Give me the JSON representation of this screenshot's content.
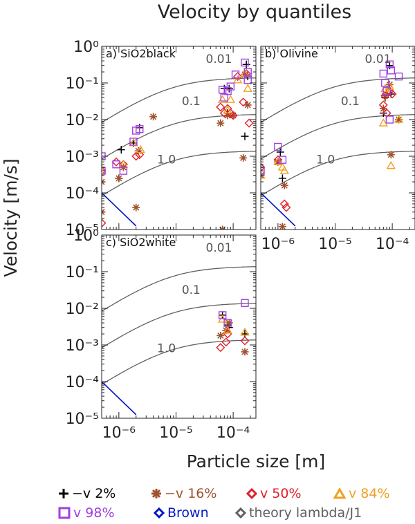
{
  "figure": {
    "title": "Velocity by quantiles",
    "xlabel": "Particle size [m]",
    "ylabel": "Velocity [m/s]",
    "colors": {
      "v2": "#000000",
      "v16": "#a0522d",
      "v50": "#e0202a",
      "v84": "#f0a020",
      "v98": "#a040e0",
      "brown": "#0018c8",
      "theory": "#606060"
    }
  },
  "legend": [
    {
      "key": "v2",
      "label": "−v 2%",
      "symbol": "plus"
    },
    {
      "key": "v16",
      "label": "−v 16%",
      "symbol": "asterisk"
    },
    {
      "key": "v50",
      "label": "v 50%",
      "symbol": "diamond"
    },
    {
      "key": "v84",
      "label": "v 84%",
      "symbol": "triangle"
    },
    {
      "key": "v98",
      "label": "v 98%",
      "symbol": "square"
    },
    {
      "key": "brown",
      "label": "Brown",
      "symbol": "diamond"
    },
    {
      "key": "theory",
      "label": "theory lambda/J1",
      "symbol": "diamond"
    }
  ],
  "chart_data": [
    {
      "type": "scatter",
      "title": "a) SiO2black",
      "xscale": "log",
      "yscale": "log",
      "xlim": [
        5e-07,
        0.00025
      ],
      "ylim": [
        1e-05,
        1
      ],
      "yticks": [
        "10⁰",
        "10⁻¹",
        "10⁻²",
        "10⁻³",
        "10⁻⁴",
        "10⁻⁵"
      ],
      "xticks": [],
      "theory_labels": [
        "0.01",
        "0.1",
        "1.0"
      ],
      "series": [
        {
          "name": "v2",
          "points": [
            [
              5e-07,
              0.0005
            ],
            [
              1.1e-06,
              0.0015
            ],
            [
              1e-06,
              0.00025
            ],
            [
              1.8e-06,
              0.0023
            ],
            [
              2.3e-06,
              0.006
            ],
            [
              7e-05,
              0.07
            ],
            [
              8e-05,
              0.015
            ],
            [
              8.5e-05,
              0.07
            ],
            [
              0.00016,
              0.0035
            ],
            [
              0.00017,
              0.32
            ],
            [
              0.00018,
              0.15
            ]
          ]
        },
        {
          "name": "v16",
          "points": [
            [
              5e-07,
              0.0002
            ],
            [
              5e-07,
              3e-05
            ],
            [
              1e-06,
              0.00025
            ],
            [
              1.2e-06,
              0.0005
            ],
            [
              2e-06,
              4e-05
            ],
            [
              2.2e-06,
              0.0014
            ],
            [
              4e-06,
              0.012
            ],
            [
              6e-05,
              0.008
            ],
            [
              6.5e-05,
              1e-05
            ],
            [
              8e-05,
              0.013
            ],
            [
              0.0001,
              0.013
            ],
            [
              0.00015,
              0.0009
            ],
            [
              0.00016,
              0.17
            ],
            [
              0.00018,
              0.025
            ]
          ]
        },
        {
          "name": "v50",
          "points": [
            [
              5e-07,
              1.5e-05
            ],
            [
              5e-07,
              0.0004
            ],
            [
              9e-07,
              0.0007
            ],
            [
              1.2e-06,
              0.0006
            ],
            [
              2e-06,
              0.001
            ],
            [
              2.3e-06,
              0.0011
            ],
            [
              6e-05,
              0.022
            ],
            [
              7e-05,
              0.015
            ],
            [
              8e-05,
              0.02
            ],
            [
              9e-05,
              0.015
            ],
            [
              0.0001,
              0.013
            ],
            [
              0.00012,
              0.15
            ],
            [
              0.00015,
              0.03
            ],
            [
              0.00017,
              0.18
            ],
            [
              0.00019,
              0.008
            ]
          ]
        },
        {
          "name": "v84",
          "points": [
            [
              5e-07,
              0.0004
            ],
            [
              1.2e-06,
              0.0006
            ],
            [
              1.8e-06,
              0.0023
            ],
            [
              2.4e-06,
              0.0015
            ],
            [
              6.5e-05,
              0.035
            ],
            [
              8e-05,
              0.018
            ],
            [
              9e-05,
              0.035
            ],
            [
              0.00012,
              0.12
            ],
            [
              0.00016,
              0.18
            ],
            [
              0.00018,
              0.07
            ]
          ]
        },
        {
          "name": "v98",
          "points": [
            [
              5e-07,
              0.001
            ],
            [
              5e-07,
              0.0004
            ],
            [
              9e-07,
              0.0006
            ],
            [
              1.2e-06,
              0.0004
            ],
            [
              1.8e-06,
              0.0025
            ],
            [
              2e-06,
              0.005
            ],
            [
              2.3e-06,
              0.0055
            ],
            [
              6.5e-05,
              0.065
            ],
            [
              7e-05,
              0.04
            ],
            [
              8e-05,
              0.06
            ],
            [
              9e-05,
              0.08
            ],
            [
              0.00011,
              0.17
            ],
            [
              0.00016,
              0.36
            ],
            [
              0.00018,
              0.2
            ],
            [
              0.00018,
              0.12
            ]
          ]
        }
      ]
    },
    {
      "type": "scatter",
      "title": "b) Olivine",
      "xscale": "log",
      "yscale": "log",
      "xlim": [
        5e-07,
        0.00025
      ],
      "ylim": [
        1e-05,
        1
      ],
      "yticks": [],
      "xticks": [
        "10⁻⁶",
        "10⁻⁵",
        "10⁻⁴"
      ],
      "theory_labels": [
        "0.01",
        "0.1",
        "1.0"
      ],
      "series": [
        {
          "name": "v2",
          "points": [
            [
              5e-07,
              0.0005
            ],
            [
              1.1e-06,
              0.0013
            ],
            [
              1.2e-06,
              0.00025
            ],
            [
              7e-05,
              0.015
            ],
            [
              7.5e-05,
              0.04
            ],
            [
              9e-05,
              0.3
            ],
            [
              9.5e-05,
              0.05
            ]
          ]
        },
        {
          "name": "v16",
          "points": [
            [
              5e-07,
              0.0003
            ],
            [
              1e-06,
              0.0007
            ],
            [
              1.2e-06,
              1.2e-05
            ],
            [
              1.3e-06,
              0.00016
            ],
            [
              7e-05,
              0.02
            ],
            [
              7.5e-05,
              0.045
            ],
            [
              9e-05,
              0.09
            ],
            [
              9.5e-05,
              0.0011
            ],
            [
              0.00013,
              0.01
            ]
          ]
        },
        {
          "name": "v50",
          "points": [
            [
              5e-07,
              0.0005
            ],
            [
              1e-06,
              0.0008
            ],
            [
              1.3e-06,
              5e-05
            ],
            [
              1.4e-06,
              4e-05
            ],
            [
              7e-05,
              0.025
            ],
            [
              7.5e-05,
              0.045
            ],
            [
              8e-05,
              0.015
            ],
            [
              9e-05,
              0.06
            ],
            [
              0.0001,
              0.05
            ]
          ]
        },
        {
          "name": "v84",
          "points": [
            [
              5e-07,
              0.0003
            ],
            [
              1e-06,
              0.0007
            ],
            [
              1.2e-06,
              0.0005
            ],
            [
              1.3e-06,
              0.0004
            ],
            [
              7e-05,
              0.008
            ],
            [
              7.5e-05,
              0.07
            ],
            [
              9e-05,
              0.08
            ],
            [
              9.5e-05,
              0.00055
            ],
            [
              0.00013,
              0.01
            ]
          ]
        },
        {
          "name": "v98",
          "points": [
            [
              5e-07,
              0.0004
            ],
            [
              1e-06,
              0.0018
            ],
            [
              1.2e-06,
              0.0008
            ],
            [
              7e-05,
              0.18
            ],
            [
              7.5e-05,
              0.1
            ],
            [
              8e-05,
              0.06
            ],
            [
              9e-05,
              0.32
            ],
            [
              9.5e-05,
              0.22
            ],
            [
              9e-05,
              0.01
            ],
            [
              0.00013,
              0.15
            ]
          ]
        }
      ]
    },
    {
      "type": "scatter",
      "title": "c) SiO2white",
      "xscale": "log",
      "yscale": "log",
      "xlim": [
        5e-07,
        0.00025
      ],
      "ylim": [
        1e-05,
        1
      ],
      "yticks": [
        "10⁰",
        "10⁻¹",
        "10⁻²",
        "10⁻³",
        "10⁻⁴",
        "10⁻⁵"
      ],
      "xticks": [
        "10⁻⁶",
        "10⁻⁵",
        "10⁻⁴"
      ],
      "theory_labels": [
        "0.01",
        "0.1",
        "1.0"
      ],
      "series": [
        {
          "name": "v2",
          "points": [
            [
              6.5e-05,
              0.0065
            ],
            [
              8e-05,
              0.0035
            ],
            [
              8.5e-05,
              0.003
            ],
            [
              0.00016,
              0.002
            ]
          ]
        },
        {
          "name": "v16",
          "points": [
            [
              6e-05,
              0.0018
            ],
            [
              7.5e-05,
              0.0025
            ],
            [
              8.5e-05,
              0.004
            ],
            [
              0.00016,
              0.00065
            ]
          ]
        },
        {
          "name": "v50",
          "points": [
            [
              6e-05,
              0.00085
            ],
            [
              7.5e-05,
              0.0012
            ],
            [
              8e-05,
              0.002
            ],
            [
              0.00016,
              0.0013
            ]
          ]
        },
        {
          "name": "v84",
          "points": [
            [
              6.5e-05,
              0.005
            ],
            [
              8e-05,
              0.0025
            ],
            [
              0.00016,
              0.0022
            ]
          ]
        },
        {
          "name": "v98",
          "points": [
            [
              6.5e-05,
              0.0065
            ],
            [
              8e-05,
              0.004
            ],
            [
              0.00016,
              0.014
            ]
          ]
        }
      ]
    }
  ]
}
